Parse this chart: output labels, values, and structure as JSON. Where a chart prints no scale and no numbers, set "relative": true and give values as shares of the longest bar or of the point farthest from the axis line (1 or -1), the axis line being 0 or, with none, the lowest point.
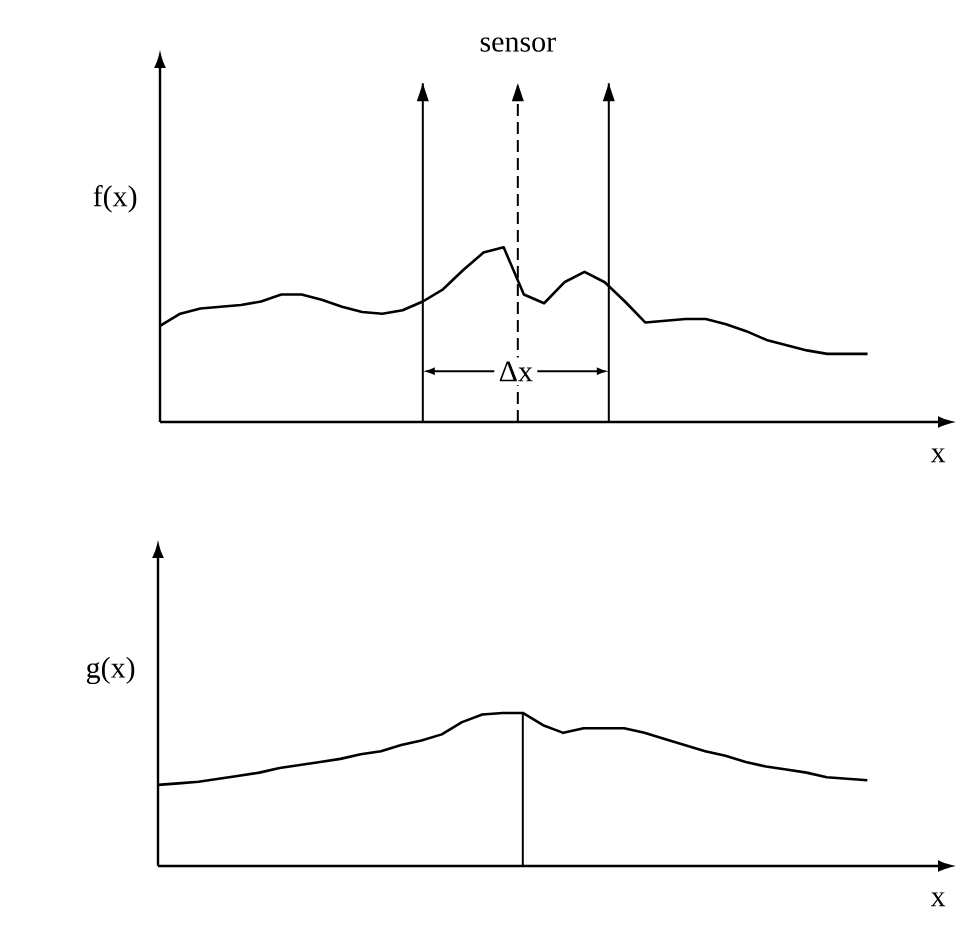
{
  "chart_data": [
    {
      "type": "line",
      "relative": true,
      "ylabel": "f(x)",
      "xlabel": "x",
      "categories": [
        null,
        null,
        null,
        null,
        null,
        null,
        null,
        null,
        null,
        null,
        null,
        null,
        null,
        null,
        null,
        null,
        null,
        null,
        null,
        null,
        null,
        null,
        null,
        null,
        null,
        null,
        null,
        null,
        null,
        null,
        null,
        null,
        null,
        null,
        null,
        null
      ],
      "series": [
        {
          "color": "#000000",
          "values": [
            0.55,
            0.62,
            0.65,
            0.66,
            0.67,
            0.69,
            0.73,
            0.73,
            0.7,
            0.66,
            0.63,
            0.62,
            0.64,
            0.69,
            0.76,
            0.87,
            0.97,
            1.0,
            0.73,
            0.68,
            0.8,
            0.86,
            0.8,
            0.69,
            0.57,
            0.58,
            0.59,
            0.59,
            0.56,
            0.52,
            0.47,
            0.44,
            0.41,
            0.39,
            0.39,
            0.39
          ]
        }
      ],
      "annotations": [
        "sensor",
        "Δx"
      ]
    },
    {
      "type": "line",
      "relative": true,
      "ylabel": "g(x)",
      "xlabel": "x",
      "categories": [
        null,
        null,
        null,
        null,
        null,
        null,
        null,
        null,
        null,
        null,
        null,
        null,
        null,
        null,
        null,
        null,
        null,
        null,
        null,
        null,
        null,
        null,
        null,
        null,
        null,
        null,
        null,
        null,
        null,
        null,
        null,
        null,
        null,
        null,
        null,
        null
      ],
      "series": [
        {
          "color": "#000000",
          "values": [
            0.53,
            0.54,
            0.55,
            0.57,
            0.59,
            0.61,
            0.64,
            0.66,
            0.68,
            0.7,
            0.73,
            0.75,
            0.79,
            0.82,
            0.86,
            0.94,
            0.99,
            1.0,
            1.0,
            0.92,
            0.87,
            0.9,
            0.9,
            0.9,
            0.87,
            0.83,
            0.79,
            0.75,
            0.72,
            0.68,
            0.65,
            0.63,
            0.61,
            0.58,
            0.57,
            0.56
          ]
        }
      ]
    }
  ]
}
